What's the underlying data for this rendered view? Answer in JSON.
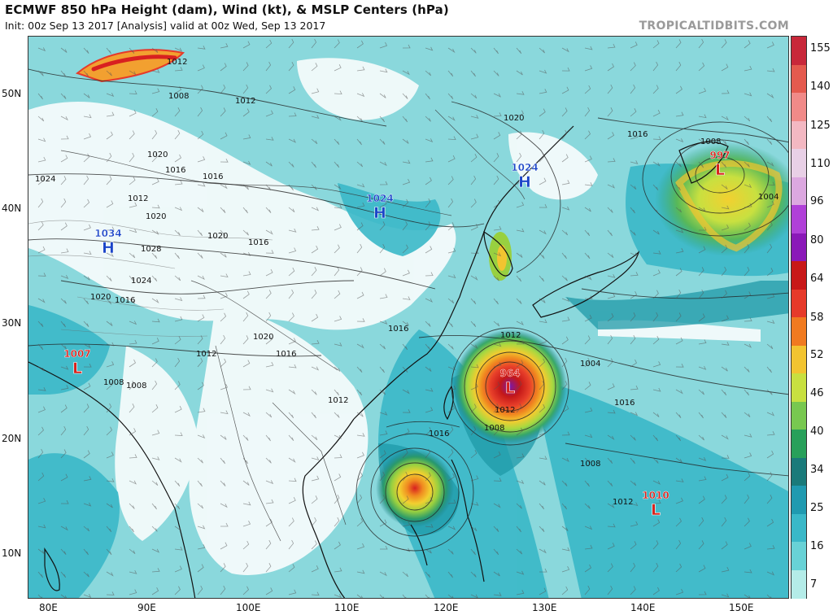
{
  "title": "ECMWF 850 hPa Height (dam), Wind (kt), & MSLP Centers (hPa)",
  "subtitle": "Init: 00z Sep 13 2017   [Analysis]   valid at 00z Wed, Sep 13 2017",
  "brand": "TROPICALTIDBITS.COM",
  "lat_labels": [
    "50N",
    "40N",
    "30N",
    "20N",
    "10N"
  ],
  "lon_labels": [
    "80E",
    "90E",
    "100E",
    "110E",
    "120E",
    "130E",
    "140E",
    "150E"
  ],
  "colorbar": {
    "labels": [
      "155",
      "140",
      "125",
      "110",
      "96",
      "80",
      "64",
      "58",
      "52",
      "46",
      "40",
      "34",
      "25",
      "16",
      "7"
    ],
    "colors": [
      "#c8283a",
      "#e45a4e",
      "#f08a88",
      "#f3b8c2",
      "#e8d0e6",
      "#dca8e0",
      "#b040d8",
      "#8a18b8",
      "#c81818",
      "#e63a2a",
      "#f07a20",
      "#f2c430",
      "#c8e040",
      "#78c850",
      "#28a05a",
      "#1a7a7a",
      "#209ab0",
      "#3ab8c8",
      "#68d2d6",
      "#b4ece8"
    ]
  },
  "pressure_centers": [
    {
      "type": "H",
      "value": "1034",
      "color": "#1a44c8"
    },
    {
      "type": "H",
      "value": "1024",
      "color": "#1a44c8"
    },
    {
      "type": "H",
      "value": "1024",
      "color": "#1a44c8"
    },
    {
      "type": "L",
      "value": "1007",
      "color": "#d8201a"
    },
    {
      "type": "L",
      "value": "964",
      "color": "#d8201a"
    },
    {
      "type": "L",
      "value": "997",
      "color": "#d8201a"
    },
    {
      "type": "L",
      "value": "1010",
      "color": "#d8201a"
    }
  ],
  "isobar_labels": [
    "1012",
    "1008",
    "1012",
    "1020",
    "1016",
    "1016",
    "1024",
    "1012",
    "1020",
    "1020",
    "1028",
    "1016",
    "1024",
    "1020",
    "1016",
    "1020",
    "1008",
    "1016",
    "1012",
    "1008",
    "1016",
    "1012",
    "1012",
    "1016",
    "1012",
    "1008",
    "1004",
    "1008",
    "1012",
    "1016",
    "1008",
    "1004",
    "1016",
    "1020"
  ]
}
